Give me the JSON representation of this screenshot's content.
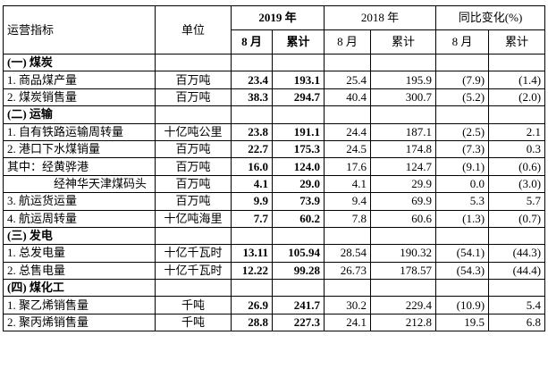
{
  "header": {
    "col_metric": "运营指标",
    "col_unit": "单位",
    "years": [
      "2019 年",
      "2018 年",
      "同比变化(%)"
    ],
    "sub": [
      "8 月",
      "累计",
      "8 月",
      "累计",
      "8 月",
      "累计"
    ]
  },
  "sections": [
    {
      "title": "(一) 煤炭",
      "rows": [
        {
          "name": "1. 商品煤产量",
          "unit": "百万吨",
          "values": [
            "23.4",
            "193.1",
            "25.4",
            "195.9",
            "(7.9)",
            "(1.4)"
          ]
        },
        {
          "name": "2. 煤炭销售量",
          "unit": "百万吨",
          "values": [
            "38.3",
            "294.7",
            "40.4",
            "300.7",
            "(5.2)",
            "(2.0)"
          ]
        }
      ]
    },
    {
      "title": "(二) 运输",
      "rows": [
        {
          "name": "1. 自有铁路运输周转量",
          "unit": "十亿吨公里",
          "values": [
            "23.8",
            "191.1",
            "24.4",
            "187.1",
            "(2.5)",
            "2.1"
          ]
        },
        {
          "name": "2. 港口下水煤销量",
          "unit": "百万吨",
          "values": [
            "22.7",
            "175.3",
            "24.5",
            "174.8",
            "(7.3)",
            "0.3"
          ]
        },
        {
          "name": "其中：经黄骅港",
          "unit": "百万吨",
          "values": [
            "16.0",
            "124.0",
            "17.6",
            "124.7",
            "(9.1)",
            "(0.6)"
          ]
        },
        {
          "name": "经神华天津煤码头",
          "unit": "百万吨",
          "values": [
            "4.1",
            "29.0",
            "4.1",
            "29.9",
            "0.0",
            "(3.0)"
          ]
        },
        {
          "name": "3. 航运货运量",
          "unit": "百万吨",
          "values": [
            "9.9",
            "73.9",
            "9.4",
            "69.9",
            "5.3",
            "5.7"
          ]
        },
        {
          "name": "4. 航运周转量",
          "unit": "十亿吨海里",
          "values": [
            "7.7",
            "60.2",
            "7.8",
            "60.6",
            "(1.3)",
            "(0.7)"
          ]
        }
      ]
    },
    {
      "title": "(三) 发电",
      "rows": [
        {
          "name": "1. 总发电量",
          "unit": "十亿千瓦时",
          "values": [
            "13.11",
            "105.94",
            "28.54",
            "190.32",
            "(54.1)",
            "(44.3)"
          ]
        },
        {
          "name": "2. 总售电量",
          "unit": "十亿千瓦时",
          "values": [
            "12.22",
            "99.28",
            "26.73",
            "178.57",
            "(54.3)",
            "(44.4)"
          ]
        }
      ]
    },
    {
      "title": "(四) 煤化工",
      "rows": [
        {
          "name": "1. 聚乙烯销售量",
          "unit": "千吨",
          "values": [
            "26.9",
            "241.7",
            "30.2",
            "229.4",
            "(10.9)",
            "5.4"
          ]
        },
        {
          "name": "2. 聚丙烯销售量",
          "unit": "千吨",
          "values": [
            "28.8",
            "227.3",
            "24.1",
            "212.8",
            "19.5",
            "6.8"
          ]
        }
      ]
    }
  ]
}
